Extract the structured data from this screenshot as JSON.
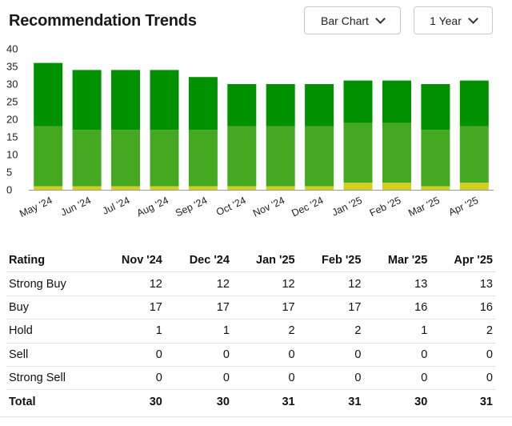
{
  "header": {
    "title": "Recommendation Trends",
    "chart_type_select": "Bar Chart",
    "range_select": "1 Year"
  },
  "colors": {
    "strong_buy": "#009100",
    "buy": "#44a821",
    "hold": "#d3d01d",
    "sell": "#f06d1c",
    "strong_sell": "#d42323"
  },
  "chart_data": {
    "type": "bar",
    "stacked": true,
    "categories": [
      "May '24",
      "Jun '24",
      "Jul '24",
      "Aug '24",
      "Sep '24",
      "Oct '24",
      "Nov '24",
      "Dec '24",
      "Jan '25",
      "Feb '25",
      "Mar '25",
      "Apr '25"
    ],
    "series": [
      {
        "name": "Hold",
        "values": [
          1,
          1,
          1,
          1,
          1,
          1,
          1,
          1,
          2,
          2,
          1,
          2
        ]
      },
      {
        "name": "Buy",
        "values": [
          17,
          16,
          16,
          16,
          16,
          17,
          17,
          17,
          17,
          17,
          16,
          16
        ]
      },
      {
        "name": "Strong Buy",
        "values": [
          18,
          17,
          17,
          17,
          15,
          12,
          12,
          12,
          12,
          12,
          13,
          13
        ]
      }
    ],
    "yticks": [
      0,
      5,
      10,
      15,
      20,
      25,
      30,
      35,
      40
    ],
    "ylim": [
      0,
      40
    ],
    "grid": false,
    "legend": "none"
  },
  "table": {
    "header": [
      "Rating",
      "Nov '24",
      "Dec '24",
      "Jan '25",
      "Feb '25",
      "Mar '25",
      "Apr '25"
    ],
    "rows": [
      [
        "Strong Buy",
        "12",
        "12",
        "12",
        "12",
        "13",
        "13"
      ],
      [
        "Buy",
        "17",
        "17",
        "17",
        "17",
        "16",
        "16"
      ],
      [
        "Hold",
        "1",
        "1",
        "2",
        "2",
        "1",
        "2"
      ],
      [
        "Sell",
        "0",
        "0",
        "0",
        "0",
        "0",
        "0"
      ],
      [
        "Strong Sell",
        "0",
        "0",
        "0",
        "0",
        "0",
        "0"
      ]
    ],
    "total": [
      "Total",
      "30",
      "30",
      "31",
      "31",
      "30",
      "31"
    ]
  }
}
